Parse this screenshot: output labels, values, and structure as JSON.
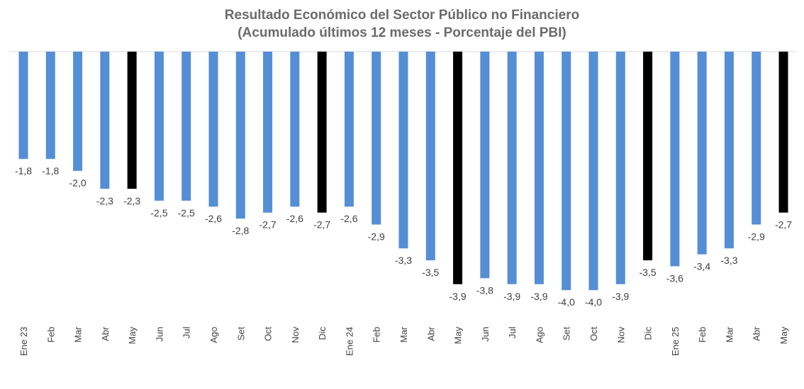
{
  "chart_data": {
    "type": "bar",
    "title": "Resultado Económico del Sector Público no Financiero",
    "subtitle": "(Acumulado últimos 12 meses - Porcentaje del PBI)",
    "xlabel": "",
    "ylabel": "",
    "ylim": [
      -4.5,
      0
    ],
    "grid": false,
    "legend": "none",
    "categories": [
      "Ene 23",
      "Feb",
      "Mar",
      "Abr",
      "May",
      "Jun",
      "Jul",
      "Ago",
      "Set",
      "Oct",
      "Nov",
      "Dic",
      "Ene 24",
      "Feb",
      "Mar",
      "Abr",
      "May",
      "Jun",
      "Jul",
      "Ago",
      "Set",
      "Oct",
      "Nov",
      "Dic",
      "Ene 25",
      "Feb",
      "Mar",
      "Abr",
      "May"
    ],
    "values": [
      -1.8,
      -1.8,
      -2.0,
      -2.3,
      -2.3,
      -2.5,
      -2.5,
      -2.6,
      -2.8,
      -2.7,
      -2.6,
      -2.7,
      -2.6,
      -2.9,
      -3.3,
      -3.5,
      -3.9,
      -3.8,
      -3.9,
      -3.9,
      -4.0,
      -4.0,
      -3.9,
      -3.5,
      -3.6,
      -3.4,
      -3.3,
      -2.9,
      -2.7
    ],
    "highlighted": [
      4,
      11,
      16,
      23,
      28
    ],
    "colors": {
      "default": "#558ed5",
      "highlight": "#000000",
      "axis": "#d9d9d9",
      "label": "#404040",
      "title": "#6b6b6b"
    }
  }
}
